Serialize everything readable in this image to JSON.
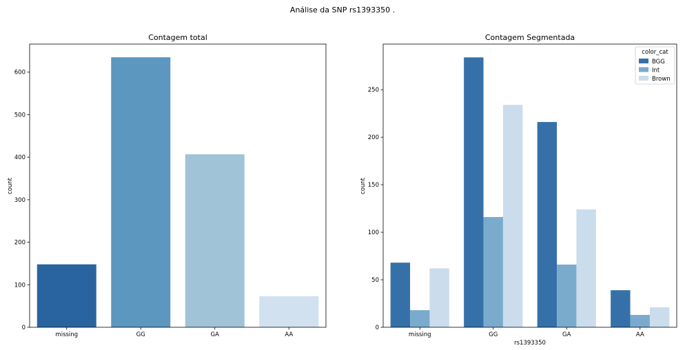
{
  "figure": {
    "suptitle": "Análise da SNP rs1393350 ."
  },
  "chart_data": [
    {
      "type": "bar",
      "title": "Contagem total",
      "xlabel": "",
      "ylabel": "count",
      "categories": [
        "missing",
        "GG",
        "GA",
        "AA"
      ],
      "values": [
        148,
        635,
        407,
        73
      ],
      "colors": [
        "#2a64a0",
        "#5c97bf",
        "#a0c3d7",
        "#d1e1ef"
      ],
      "ylim": [
        0,
        666
      ],
      "yticks": [
        0,
        100,
        200,
        300,
        400,
        500,
        600
      ]
    },
    {
      "type": "bar",
      "title": "Contagem Segmentada",
      "xlabel": "rs1393350",
      "ylabel": "count",
      "categories": [
        "missing",
        "GG",
        "GA",
        "AA"
      ],
      "series": [
        {
          "name": "BGG",
          "color": "#3571a8",
          "values": [
            68,
            284,
            216,
            39
          ]
        },
        {
          "name": "Int",
          "color": "#7aabcd",
          "values": [
            18,
            116,
            66,
            13
          ]
        },
        {
          "name": "Brown",
          "color": "#cbdcec",
          "values": [
            62,
            234,
            124,
            21
          ]
        }
      ],
      "legend": {
        "title": "color_cat",
        "position": "top-right"
      },
      "ylim": [
        0,
        298
      ],
      "yticks": [
        0,
        50,
        100,
        150,
        200,
        250
      ]
    }
  ]
}
